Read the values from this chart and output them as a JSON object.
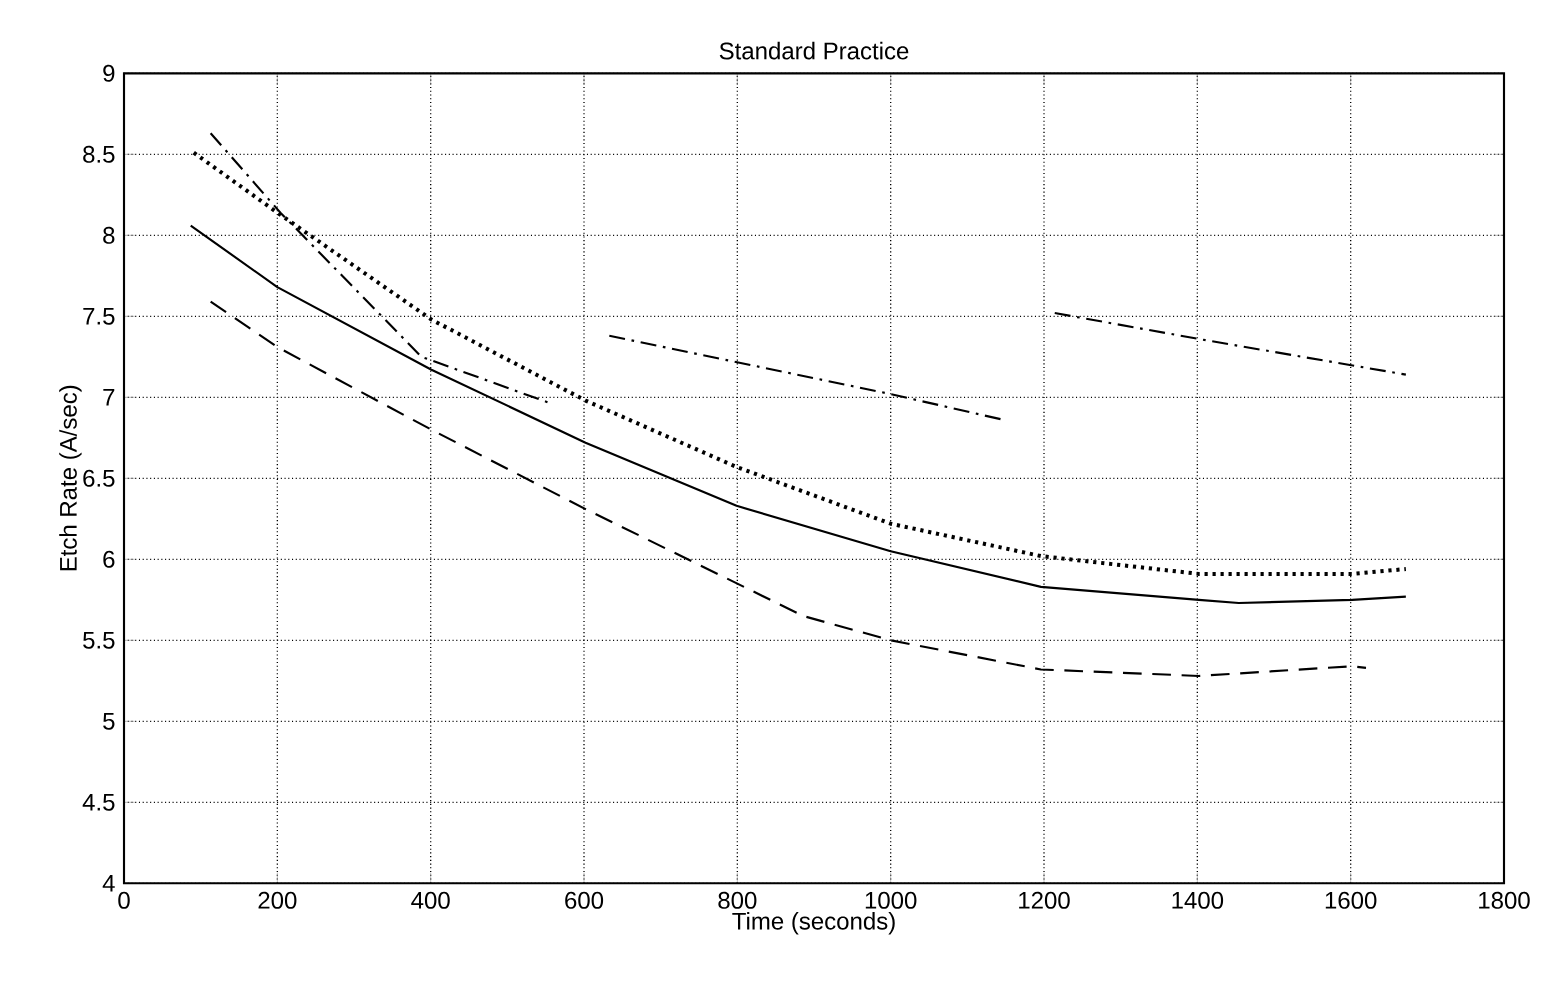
{
  "chart_data": {
    "type": "line",
    "title": "Standard Practice",
    "xlabel": "Time (seconds)",
    "ylabel": "Etch Rate (A/sec)",
    "xlim": [
      0,
      1800
    ],
    "ylim": [
      4,
      9
    ],
    "xticks": [
      0,
      200,
      400,
      600,
      800,
      1000,
      1200,
      1400,
      1600,
      1800
    ],
    "yticks": [
      4,
      {
        "value": 4.5,
        "label": "4.5"
      },
      5,
      {
        "value": 5.5,
        "label": "5.5"
      },
      6,
      {
        "value": 6.5,
        "label": "6.5"
      },
      7,
      {
        "value": 7.5,
        "label": "7.5"
      },
      8,
      {
        "value": 8.5,
        "label": "8.5"
      },
      9
    ],
    "grid": true,
    "marker": "none",
    "series": [
      {
        "color": "#000000",
        "line_style": "solid",
        "x": [
          87,
          200,
          401,
          602,
          799,
          1000,
          1196,
          1402,
          1454,
          1602,
          1672
        ],
        "values": [
          8.06,
          7.68,
          7.17,
          6.72,
          6.33,
          6.05,
          5.83,
          5.75,
          5.73,
          5.75,
          5.77
        ]
      },
      {
        "color": "#000000",
        "line_style": "dotted",
        "x": [
          91,
          200,
          401,
          602,
          799,
          1000,
          1196,
          1402,
          1602,
          1672
        ],
        "values": [
          8.51,
          8.14,
          7.48,
          6.98,
          6.57,
          6.22,
          6.02,
          5.91,
          5.91,
          5.94
        ]
      },
      {
        "color": "#000000",
        "line_style": "dashed",
        "x": [
          113,
          200,
          401,
          602,
          886,
          1000,
          1196,
          1402,
          1602,
          1620
        ],
        "values": [
          7.59,
          7.31,
          6.8,
          6.31,
          5.65,
          5.5,
          5.32,
          5.28,
          5.34,
          5.33
        ]
      },
      {
        "color": "#000000",
        "line_style": "dashdot",
        "x": [
          113,
          204,
          388,
          558
        ],
        "values": [
          8.63,
          8.14,
          7.25,
          6.96
        ]
      },
      {
        "color": "#000000",
        "line_style": "dashdot",
        "x": [
          633,
          1000,
          1148
        ],
        "values": [
          7.38,
          7.02,
          6.86
        ]
      },
      {
        "color": "#000000",
        "line_style": "dashdot",
        "x": [
          1214,
          1402,
          1672
        ],
        "values": [
          7.52,
          7.36,
          7.14
        ]
      }
    ]
  }
}
